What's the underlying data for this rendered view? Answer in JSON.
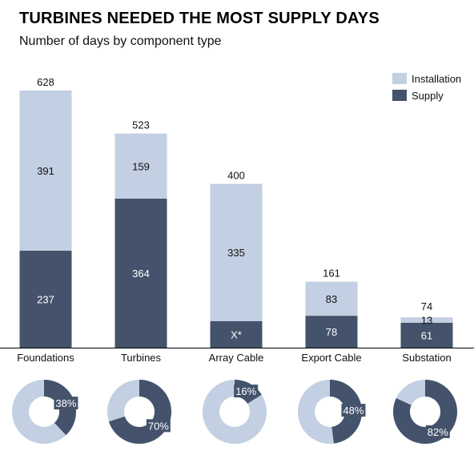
{
  "title": "TURBINES NEEDED THE MOST SUPPLY DAYS",
  "subtitle": "Number of days by component type",
  "colors": {
    "installation": "#c3cfe2",
    "supply": "#44536b"
  },
  "chart_data": {
    "type": "bar",
    "stacked": true,
    "categories": [
      "Foundations",
      "Turbines",
      "Array Cable",
      "Export Cable",
      "Substation"
    ],
    "series": [
      {
        "name": "Supply",
        "values": [
          237,
          364,
          65,
          78,
          61
        ],
        "labels": [
          "237",
          "364",
          "X*",
          "78",
          "61"
        ]
      },
      {
        "name": "Installation",
        "values": [
          391,
          159,
          335,
          83,
          13
        ],
        "labels": [
          "391",
          "159",
          "335",
          "83",
          "13"
        ]
      }
    ],
    "totals": [
      628,
      523,
      400,
      161,
      74
    ],
    "ylim": [
      0,
      628
    ],
    "legend": {
      "position": "top-right",
      "entries": [
        "Installation",
        "Supply"
      ]
    },
    "donuts": {
      "type": "pie",
      "supply_share_labels": [
        "38%",
        "70%",
        "16%",
        "48%",
        "82%"
      ],
      "supply_share": [
        0.38,
        0.7,
        0.16,
        0.48,
        0.82
      ]
    }
  }
}
